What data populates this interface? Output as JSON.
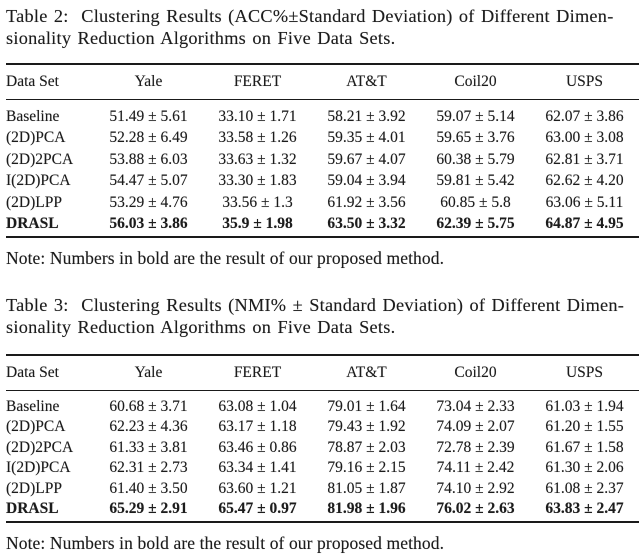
{
  "tables": [
    {
      "caption_lines": [
        "Table 2:  Clustering Results (ACC%±Standard Deviation) of Different Dimen-",
        "sionality Reduction Algorithms on Five Data Sets."
      ],
      "columns": [
        "Data Set",
        "Yale",
        "FERET",
        "AT&T",
        "Coil20",
        "USPS"
      ],
      "rows": [
        {
          "name": "Baseline",
          "bold": false,
          "values": [
            "51.49 ± 5.61",
            "33.10 ± 1.71",
            "58.21 ± 3.92",
            "59.07 ± 5.14",
            "62.07 ± 3.86"
          ]
        },
        {
          "name": "(2D)PCA",
          "bold": false,
          "values": [
            "52.28 ± 6.49",
            "33.58 ± 1.26",
            "59.35 ± 4.01",
            "59.65 ± 3.76",
            "63.00 ± 3.08"
          ]
        },
        {
          "name": "(2D)2PCA",
          "bold": false,
          "values": [
            "53.88 ± 6.03",
            "33.63 ± 1.32",
            "59.67 ± 4.07",
            "60.38 ± 5.79",
            "62.81 ± 3.71"
          ]
        },
        {
          "name": "I(2D)PCA",
          "bold": false,
          "values": [
            "54.47 ± 5.07",
            "33.30 ± 1.83",
            "59.04 ± 3.94",
            "59.81 ± 5.42",
            "62.62 ± 4.20"
          ]
        },
        {
          "name": "(2D)LPP",
          "bold": false,
          "values": [
            "53.29 ± 4.76",
            "33.56 ± 1.3",
            "61.92 ± 3.56",
            "60.85 ± 5.8",
            "63.06 ± 5.11"
          ]
        },
        {
          "name": "DRASL",
          "bold": true,
          "values": [
            "56.03 ± 3.86",
            "35.9 ± 1.98",
            "63.50 ± 3.32",
            "62.39 ± 5.75",
            "64.87 ± 4.95"
          ]
        }
      ],
      "note": "Note: Numbers in bold are the result of our proposed method."
    },
    {
      "caption_lines": [
        "Table 3:  Clustering Results (NMI% ± Standard Deviation) of Different Dimen-",
        "sionality Reduction Algorithms on Five Data Sets."
      ],
      "columns": [
        "Data Set",
        "Yale",
        "FERET",
        "AT&T",
        "Coil20",
        "USPS"
      ],
      "rows": [
        {
          "name": "Baseline",
          "bold": false,
          "values": [
            "60.68 ± 3.71",
            "63.08 ± 1.04",
            "79.01 ± 1.64",
            "73.04 ± 2.33",
            "61.03 ± 1.94"
          ]
        },
        {
          "name": "(2D)PCA",
          "bold": false,
          "values": [
            "62.23 ± 4.36",
            "63.17 ± 1.18",
            "79.43 ± 1.92",
            "74.09 ± 2.07",
            "61.20 ± 1.55"
          ]
        },
        {
          "name": "(2D)2PCA",
          "bold": false,
          "values": [
            "61.33 ± 3.81",
            "63.46 ± 0.86",
            "78.87 ± 2.03",
            "72.78 ± 2.39",
            "61.67 ± 1.58"
          ]
        },
        {
          "name": "I(2D)PCA",
          "bold": false,
          "values": [
            "62.31 ± 2.73",
            "63.34 ± 1.41",
            "79.16 ± 2.15",
            "74.11 ± 2.42",
            "61.30 ± 2.06"
          ]
        },
        {
          "name": "(2D)LPP",
          "bold": false,
          "values": [
            "61.40 ± 3.50",
            "63.60 ± 1.21",
            "81.05 ± 1.87",
            "74.10 ± 2.92",
            "61.08 ± 2.37"
          ]
        },
        {
          "name": "DRASL",
          "bold": true,
          "values": [
            "65.29 ± 2.91",
            "65.47 ± 0.97",
            "81.98 ± 1.96",
            "76.02 ± 2.63",
            "63.83 ± 2.47"
          ]
        }
      ],
      "note": "Note: Numbers in bold are the result of our proposed method."
    }
  ]
}
